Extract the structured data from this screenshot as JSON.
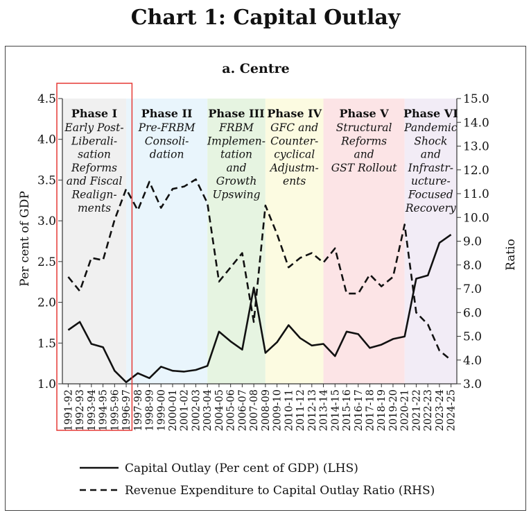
{
  "title": "Chart 1: Capital Outlay",
  "chart_data": {
    "type": "line",
    "title": "a. Centre",
    "ylabel": "Per cent of GDP",
    "y2label": "Ratio",
    "ylim": [
      1.0,
      4.5
    ],
    "y2lim": [
      3.0,
      15.0
    ],
    "yticks": [
      "1.0",
      "1.5",
      "2.0",
      "2.5",
      "3.0",
      "3.5",
      "4.0",
      "4.5"
    ],
    "y2ticks": [
      "3.0",
      "4.0",
      "5.0",
      "6.0",
      "7.0",
      "8.0",
      "9.0",
      "10.0",
      "11.0",
      "12.0",
      "13.0",
      "14.0",
      "15.0"
    ],
    "categories": [
      "1991-92",
      "1992-93",
      "1993-94",
      "1994-95",
      "1995-96",
      "1996-97",
      "1997-98",
      "1998-99",
      "1999-00",
      "2000-01",
      "2001-02",
      "2002-03",
      "2003-04",
      "2004-05",
      "2005-06",
      "2006-07",
      "2007-08",
      "2008-09",
      "2009-10",
      "2010-11",
      "2011-12",
      "2012-13",
      "2013-14",
      "2014-15",
      "2015-16",
      "2016-17",
      "2017-18",
      "2018-19",
      "2019-20",
      "2020-21",
      "2021-22",
      "2022-23",
      "2023-24",
      "2024-25"
    ],
    "series": [
      {
        "name": "Capital Outlay (Per cent of GDP) (LHS)",
        "axis": "left",
        "style": "solid",
        "values": [
          1.66,
          1.76,
          1.49,
          1.45,
          1.16,
          1.02,
          1.13,
          1.07,
          1.21,
          1.16,
          1.15,
          1.17,
          1.22,
          1.64,
          1.52,
          1.42,
          2.18,
          1.38,
          1.51,
          1.72,
          1.56,
          1.47,
          1.49,
          1.34,
          1.64,
          1.61,
          1.44,
          1.48,
          1.55,
          1.58,
          2.29,
          2.33,
          2.73,
          2.83
        ]
      },
      {
        "name": "Revenue Expenditure to Capital Outlay Ratio (RHS)",
        "axis": "right",
        "style": "dashed",
        "values": [
          7.5,
          6.9,
          8.3,
          8.2,
          9.9,
          11.2,
          10.3,
          11.5,
          10.4,
          11.2,
          11.3,
          11.6,
          10.6,
          7.3,
          7.9,
          8.5,
          5.6,
          10.5,
          9.3,
          7.9,
          8.3,
          8.5,
          8.1,
          8.7,
          6.8,
          6.8,
          7.6,
          7.1,
          7.5,
          9.7,
          6.0,
          5.5,
          4.4,
          4.0
        ]
      }
    ],
    "phases": [
      {
        "title": "Phase I",
        "desc": [
          "Early Post-",
          "Liberali-",
          "sation",
          "Reforms",
          "and Fiscal",
          "Realign-",
          "ments"
        ],
        "start": 0,
        "end": 5,
        "color": "#f0f0f0"
      },
      {
        "title": "Phase II",
        "desc": [
          "Pre-FRBM",
          "Consoli-",
          "dation"
        ],
        "start": 5,
        "end": 12,
        "color": "#e9f5fc"
      },
      {
        "title": "Phase III",
        "desc": [
          "FRBM",
          "Implemen-",
          "tation",
          "and",
          "Growth",
          "Upswing"
        ],
        "start": 12,
        "end": 17,
        "color": "#e6f4e1"
      },
      {
        "title": "Phase IV",
        "desc": [
          "GFC and",
          "Counter-",
          "cyclical",
          "Adjustm-",
          "ents"
        ],
        "start": 17,
        "end": 22,
        "color": "#fcfbe1"
      },
      {
        "title": "Phase V",
        "desc": [
          "Structural",
          "Reforms",
          "and",
          "GST Rollout"
        ],
        "start": 22,
        "end": 29,
        "color": "#fce4e6"
      },
      {
        "title": "Phase VI",
        "desc": [
          "Pandemic",
          "Shock",
          "and",
          "Infrastr-",
          "ucture-",
          "Focused",
          "Recovery"
        ],
        "start": 29,
        "end": 33,
        "color": "#f2ecf6"
      }
    ],
    "highlight": {
      "start": 0,
      "end": 5,
      "color": "#e53935"
    },
    "legend_position": "bottom"
  }
}
